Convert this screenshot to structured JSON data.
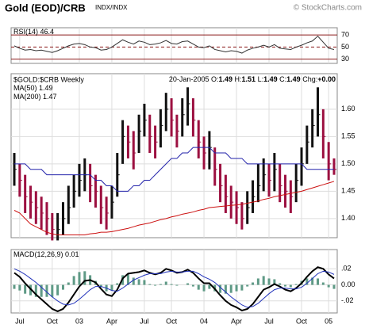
{
  "header": {
    "title": "Gold (EOD)/CRB",
    "exchange": "INDX/INDX",
    "credit": "© StockCharts.com"
  },
  "chart_data": [
    {
      "type": "line",
      "label": "RSI(14)",
      "last": 46.4,
      "ylim": [
        23,
        82
      ],
      "yticks": [
        70,
        50,
        30
      ],
      "grid": true,
      "series": [
        {
          "color": "#333333",
          "values": [
            52,
            48,
            45,
            46,
            44,
            45,
            43,
            41,
            44,
            48,
            52,
            55,
            56,
            54,
            50,
            49,
            45,
            46,
            50,
            56,
            62,
            58,
            55,
            60,
            58,
            54,
            55,
            57,
            61,
            56,
            55,
            59,
            60,
            55,
            50,
            49,
            52,
            46,
            44,
            42,
            44,
            43,
            40,
            45,
            48,
            50,
            53,
            50,
            54,
            48,
            47,
            46,
            50,
            53,
            57,
            60,
            68,
            58,
            48,
            46
          ]
        }
      ]
    },
    {
      "type": "ohlc",
      "label": "$GOLD:$CRB Weekly",
      "date": "20-Jan-2005",
      "quote": [
        {
          "name": "O:",
          "value": 1.49
        },
        {
          "name": "H:",
          "value": 1.51
        },
        {
          "name": "L:",
          "value": 1.49
        },
        {
          "name": "C:",
          "value": 1.49
        },
        {
          "name": "Chg:",
          "value": 0,
          "value_label": "+0.00"
        }
      ],
      "ylim": [
        1.365,
        1.665
      ],
      "yticks": [
        {
          "value": 1.4,
          "label": "1.40"
        },
        {
          "value": 1.45,
          "label": "1.45"
        },
        {
          "value": 1.5,
          "label": "1.50"
        },
        {
          "value": 1.55,
          "label": "1.55"
        },
        {
          "value": 1.6,
          "label": "1.60"
        }
      ],
      "grid": true,
      "up_color": "#111111",
      "down_color": "#9c1040",
      "close": [
        1.49,
        1.47,
        1.44,
        1.43,
        1.42,
        1.41,
        1.4,
        1.38,
        1.38,
        1.4,
        1.42,
        1.45,
        1.47,
        1.48,
        1.46,
        1.45,
        1.42,
        1.41,
        1.43,
        1.48,
        1.55,
        1.54,
        1.52,
        1.56,
        1.58,
        1.55,
        1.54,
        1.57,
        1.6,
        1.58,
        1.56,
        1.59,
        1.61,
        1.58,
        1.54,
        1.52,
        1.53,
        1.49,
        1.46,
        1.44,
        1.43,
        1.42,
        1.4,
        1.42,
        1.44,
        1.46,
        1.48,
        1.47,
        1.49,
        1.46,
        1.45,
        1.44,
        1.47,
        1.5,
        1.54,
        1.57,
        1.59,
        1.55,
        1.5,
        1.49
      ],
      "high": [
        1.52,
        1.5,
        1.48,
        1.46,
        1.45,
        1.44,
        1.43,
        1.41,
        1.41,
        1.43,
        1.46,
        1.48,
        1.5,
        1.51,
        1.5,
        1.48,
        1.46,
        1.44,
        1.46,
        1.52,
        1.58,
        1.57,
        1.56,
        1.59,
        1.61,
        1.59,
        1.57,
        1.6,
        1.63,
        1.62,
        1.59,
        1.62,
        1.64,
        1.62,
        1.58,
        1.55,
        1.56,
        1.53,
        1.5,
        1.48,
        1.46,
        1.45,
        1.43,
        1.45,
        1.47,
        1.5,
        1.51,
        1.5,
        1.52,
        1.5,
        1.48,
        1.47,
        1.5,
        1.53,
        1.57,
        1.6,
        1.64,
        1.6,
        1.54,
        1.51
      ],
      "low": [
        1.46,
        1.44,
        1.41,
        1.4,
        1.39,
        1.38,
        1.37,
        1.36,
        1.36,
        1.37,
        1.39,
        1.42,
        1.44,
        1.45,
        1.43,
        1.42,
        1.39,
        1.38,
        1.4,
        1.44,
        1.5,
        1.51,
        1.49,
        1.52,
        1.55,
        1.52,
        1.51,
        1.53,
        1.56,
        1.55,
        1.53,
        1.55,
        1.57,
        1.55,
        1.51,
        1.49,
        1.49,
        1.46,
        1.43,
        1.41,
        1.4,
        1.39,
        1.38,
        1.39,
        1.41,
        1.43,
        1.45,
        1.44,
        1.45,
        1.43,
        1.42,
        1.41,
        1.43,
        1.46,
        1.5,
        1.53,
        1.55,
        1.51,
        1.47,
        1.48
      ],
      "series": [
        {
          "name": "MA(50)",
          "last": 1.49,
          "color": "#2222aa",
          "values": [
            1.5,
            1.5,
            1.5,
            1.49,
            1.49,
            1.49,
            1.48,
            1.48,
            1.48,
            1.48,
            1.48,
            1.48,
            1.48,
            1.48,
            1.48,
            1.47,
            1.47,
            1.46,
            1.46,
            1.45,
            1.45,
            1.45,
            1.46,
            1.46,
            1.47,
            1.47,
            1.48,
            1.49,
            1.5,
            1.51,
            1.51,
            1.52,
            1.52,
            1.53,
            1.53,
            1.53,
            1.53,
            1.52,
            1.52,
            1.52,
            1.51,
            1.51,
            1.51,
            1.5,
            1.5,
            1.5,
            1.5,
            1.5,
            1.5,
            1.5,
            1.5,
            1.5,
            1.5,
            1.5,
            1.49,
            1.49,
            1.49,
            1.49,
            1.49,
            1.49
          ]
        },
        {
          "name": "MA(200)",
          "last": 1.47,
          "color": "#cc1111",
          "values": [
            1.415,
            1.41,
            1.4,
            1.39,
            1.385,
            1.38,
            1.375,
            1.372,
            1.37,
            1.37,
            1.37,
            1.37,
            1.37,
            1.37,
            1.372,
            1.373,
            1.375,
            1.375,
            1.376,
            1.378,
            1.38,
            1.382,
            1.385,
            1.388,
            1.39,
            1.392,
            1.395,
            1.398,
            1.4,
            1.403,
            1.405,
            1.408,
            1.41,
            1.412,
            1.415,
            1.417,
            1.42,
            1.421,
            1.422,
            1.423,
            1.424,
            1.425,
            1.426,
            1.428,
            1.43,
            1.432,
            1.435,
            1.437,
            1.44,
            1.442,
            1.444,
            1.446,
            1.448,
            1.45,
            1.453,
            1.456,
            1.459,
            1.462,
            1.465,
            1.468
          ]
        }
      ]
    },
    {
      "type": "macd",
      "label": "MACD(12,26,9)",
      "last": 0.01,
      "ylim": [
        -0.035,
        0.044
      ],
      "yticks": [
        {
          "value": 0.02,
          "label": ".02"
        },
        {
          "value": 0,
          "label": "0.00"
        },
        {
          "value": -0.02,
          "label": "-.02"
        }
      ],
      "grid": true,
      "x": [
        null,
        "Jul",
        null,
        null,
        null,
        null,
        null,
        "Oct",
        null,
        null,
        null,
        null,
        "03",
        null,
        null,
        null,
        null,
        null,
        "Apr",
        null,
        null,
        null,
        null,
        null,
        "Jul",
        null,
        null,
        null,
        null,
        "Oct",
        null,
        null,
        null,
        null,
        null,
        "04",
        null,
        null,
        null,
        null,
        null,
        "Apr",
        null,
        null,
        null,
        null,
        null,
        "Jul",
        null,
        null,
        null,
        null,
        null,
        "Oct",
        null,
        null,
        null,
        null,
        "05",
        null
      ],
      "histogram": {
        "color": "#5f9a86",
        "values": [
          -0.005,
          -0.007,
          -0.011,
          -0.013,
          -0.015,
          -0.015,
          -0.015,
          -0.015,
          -0.013,
          -0.006,
          0.003,
          0.011,
          0.016,
          0.017,
          0.012,
          0.005,
          -0.003,
          -0.008,
          -0.007,
          0.002,
          0.012,
          0.013,
          0.009,
          0.007,
          0.006,
          0.001,
          -0.001,
          0.001,
          0.004,
          0.001,
          -0.001,
          0,
          0.002,
          -0.002,
          -0.006,
          -0.008,
          -0.005,
          -0.008,
          -0.01,
          -0.011,
          -0.01,
          -0.008,
          -0.007,
          -0.002,
          0.003,
          0.008,
          0.011,
          0.008,
          0.007,
          0.002,
          -0.002,
          -0.003,
          0.001,
          0.005,
          0.008,
          0.009,
          0.008,
          0.003,
          -0.003,
          -0.005
        ]
      },
      "series": [
        {
          "color": "#000000",
          "width": 2,
          "values": [
            0.015,
            0.01,
            0.002,
            -0.005,
            -0.012,
            -0.018,
            -0.024,
            -0.03,
            -0.033,
            -0.03,
            -0.022,
            -0.012,
            -0.002,
            0.005,
            0.006,
            0.003,
            -0.005,
            -0.012,
            -0.014,
            -0.006,
            0.008,
            0.014,
            0.015,
            0.016,
            0.018,
            0.015,
            0.013,
            0.015,
            0.02,
            0.018,
            0.015,
            0.016,
            0.019,
            0.015,
            0.008,
            0.002,
            0.002,
            -0.005,
            -0.013,
            -0.02,
            -0.025,
            -0.028,
            -0.032,
            -0.03,
            -0.024,
            -0.015,
            -0.006,
            -0.003,
            0.001,
            -0.002,
            -0.006,
            -0.008,
            -0.004,
            0.002,
            0.01,
            0.017,
            0.022,
            0.02,
            0.013,
            0.008
          ]
        },
        {
          "color": "#2233bb",
          "width": 1,
          "values": [
            0.02,
            0.017,
            0.013,
            0.008,
            0.003,
            -0.003,
            -0.009,
            -0.015,
            -0.02,
            -0.024,
            -0.025,
            -0.023,
            -0.018,
            -0.012,
            -0.006,
            -0.002,
            -0.002,
            -0.004,
            -0.007,
            -0.008,
            -0.004,
            0.001,
            0.006,
            0.009,
            0.012,
            0.014,
            0.014,
            0.014,
            0.016,
            0.017,
            0.016,
            0.016,
            0.017,
            0.017,
            0.014,
            0.01,
            0.007,
            0.003,
            -0.003,
            -0.009,
            -0.015,
            -0.02,
            -0.025,
            -0.028,
            -0.027,
            -0.023,
            -0.017,
            -0.011,
            -0.006,
            -0.004,
            -0.004,
            -0.005,
            -0.005,
            -0.003,
            0.002,
            0.008,
            0.014,
            0.017,
            0.016,
            0.013
          ]
        }
      ]
    }
  ]
}
